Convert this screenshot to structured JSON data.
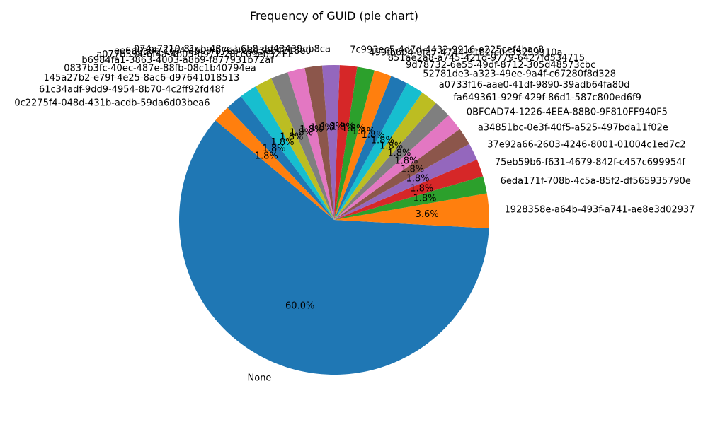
{
  "chart_data": {
    "type": "pie",
    "title": "Frequency of GUID (pie chart)",
    "start_angle_deg": 140,
    "direction": "counterclockwise",
    "slices": [
      {
        "label": "None",
        "value": 60.0,
        "pct_label": "60.0%",
        "color": "#1f77b4"
      },
      {
        "label": "1928358e-a64b-493f-a741-ae8e3d02937",
        "value": 3.6,
        "pct_label": "3.6%",
        "color": "#ff7f0e"
      },
      {
        "label": "6eda171f-708b-4c5a-85f2-df565935790e",
        "value": 1.8,
        "pct_label": "1.8%",
        "color": "#2ca02c"
      },
      {
        "label": "75eb59b6-f631-4679-842f-c457c699954f",
        "value": 1.8,
        "pct_label": "1.8%",
        "color": "#d62728"
      },
      {
        "label": "37e92a66-2603-4246-8001-01004c1ed7c2",
        "value": 1.8,
        "pct_label": "1.8%",
        "color": "#9467bd"
      },
      {
        "label": "a34851bc-0e3f-40f5-a525-497bda11f02e",
        "value": 1.8,
        "pct_label": "1.8%",
        "color": "#8c564b"
      },
      {
        "label": "0BFCAD74-1226-4EEA-88B0-9F810FF940F5",
        "value": 1.8,
        "pct_label": "1.8%",
        "color": "#e377c2"
      },
      {
        "label": "fa649361-929f-429f-86d1-587c800ed6f9",
        "value": 1.8,
        "pct_label": "1.8%",
        "color": "#7f7f7f"
      },
      {
        "label": "a0733f16-aae0-41df-9890-39adb64fa80d",
        "value": 1.8,
        "pct_label": "1.8%",
        "color": "#bcbd22"
      },
      {
        "label": "52781de3-a323-49ee-9a4f-c67280f8d328",
        "value": 1.8,
        "pct_label": "1.8%",
        "color": "#17becf"
      },
      {
        "label": "9d78732-6e55-49df-8712-305d48573cbc",
        "value": 1.8,
        "pct_label": "1.8%",
        "color": "#1f77b4"
      },
      {
        "label": "851ae2a8-a745-421d-9779-6427fd534715",
        "value": 1.8,
        "pct_label": "1.8%",
        "color": "#ff7f0e"
      },
      {
        "label": "499fb604-0fa7-4744-91b2-c0c35259910a",
        "value": 1.8,
        "pct_label": "1.8%",
        "color": "#2ca02c"
      },
      {
        "label": "7c993ec5-4d7d-4432-9916-e225cef4bac8",
        "value": 1.8,
        "pct_label": "1.8%",
        "color": "#d62728"
      },
      {
        "label": "074a7210-81cb-48cc-b6b8-dd43439eb8ca",
        "value": 1.8,
        "pct_label": "1.8%",
        "color": "#9467bd"
      },
      {
        "label": "ee6d0a0e-1cc4-4b09-b7ee-e3d3e04218e0",
        "value": 1.8,
        "pct_label": "1.8%",
        "color": "#8c564b"
      },
      {
        "label": "a077b594-6f4a-4b05-b971-28cc09eb3211",
        "value": 1.8,
        "pct_label": "1.8%",
        "color": "#e377c2"
      },
      {
        "label": "b6984fa1-3863-4003-a8b9-f877931b72af",
        "value": 1.8,
        "pct_label": "1.8%",
        "color": "#7f7f7f"
      },
      {
        "label": "0837b3fc-40ec-487e-88fb-08c1b40794ea",
        "value": 1.8,
        "pct_label": "1.8%",
        "color": "#bcbd22"
      },
      {
        "label": "145a27b2-e79f-4e25-8ac6-d97641018513",
        "value": 1.8,
        "pct_label": "1.8%",
        "color": "#17becf"
      },
      {
        "label": "61c34adf-9dd9-4954-8b70-4c2ff92fd48f",
        "value": 1.8,
        "pct_label": "1.8%",
        "color": "#1f77b4"
      },
      {
        "label": "0c2275f4-048d-431b-acdb-59da6d03bea6",
        "value": 1.8,
        "pct_label": "1.8%",
        "color": "#ff7f0e"
      }
    ]
  }
}
